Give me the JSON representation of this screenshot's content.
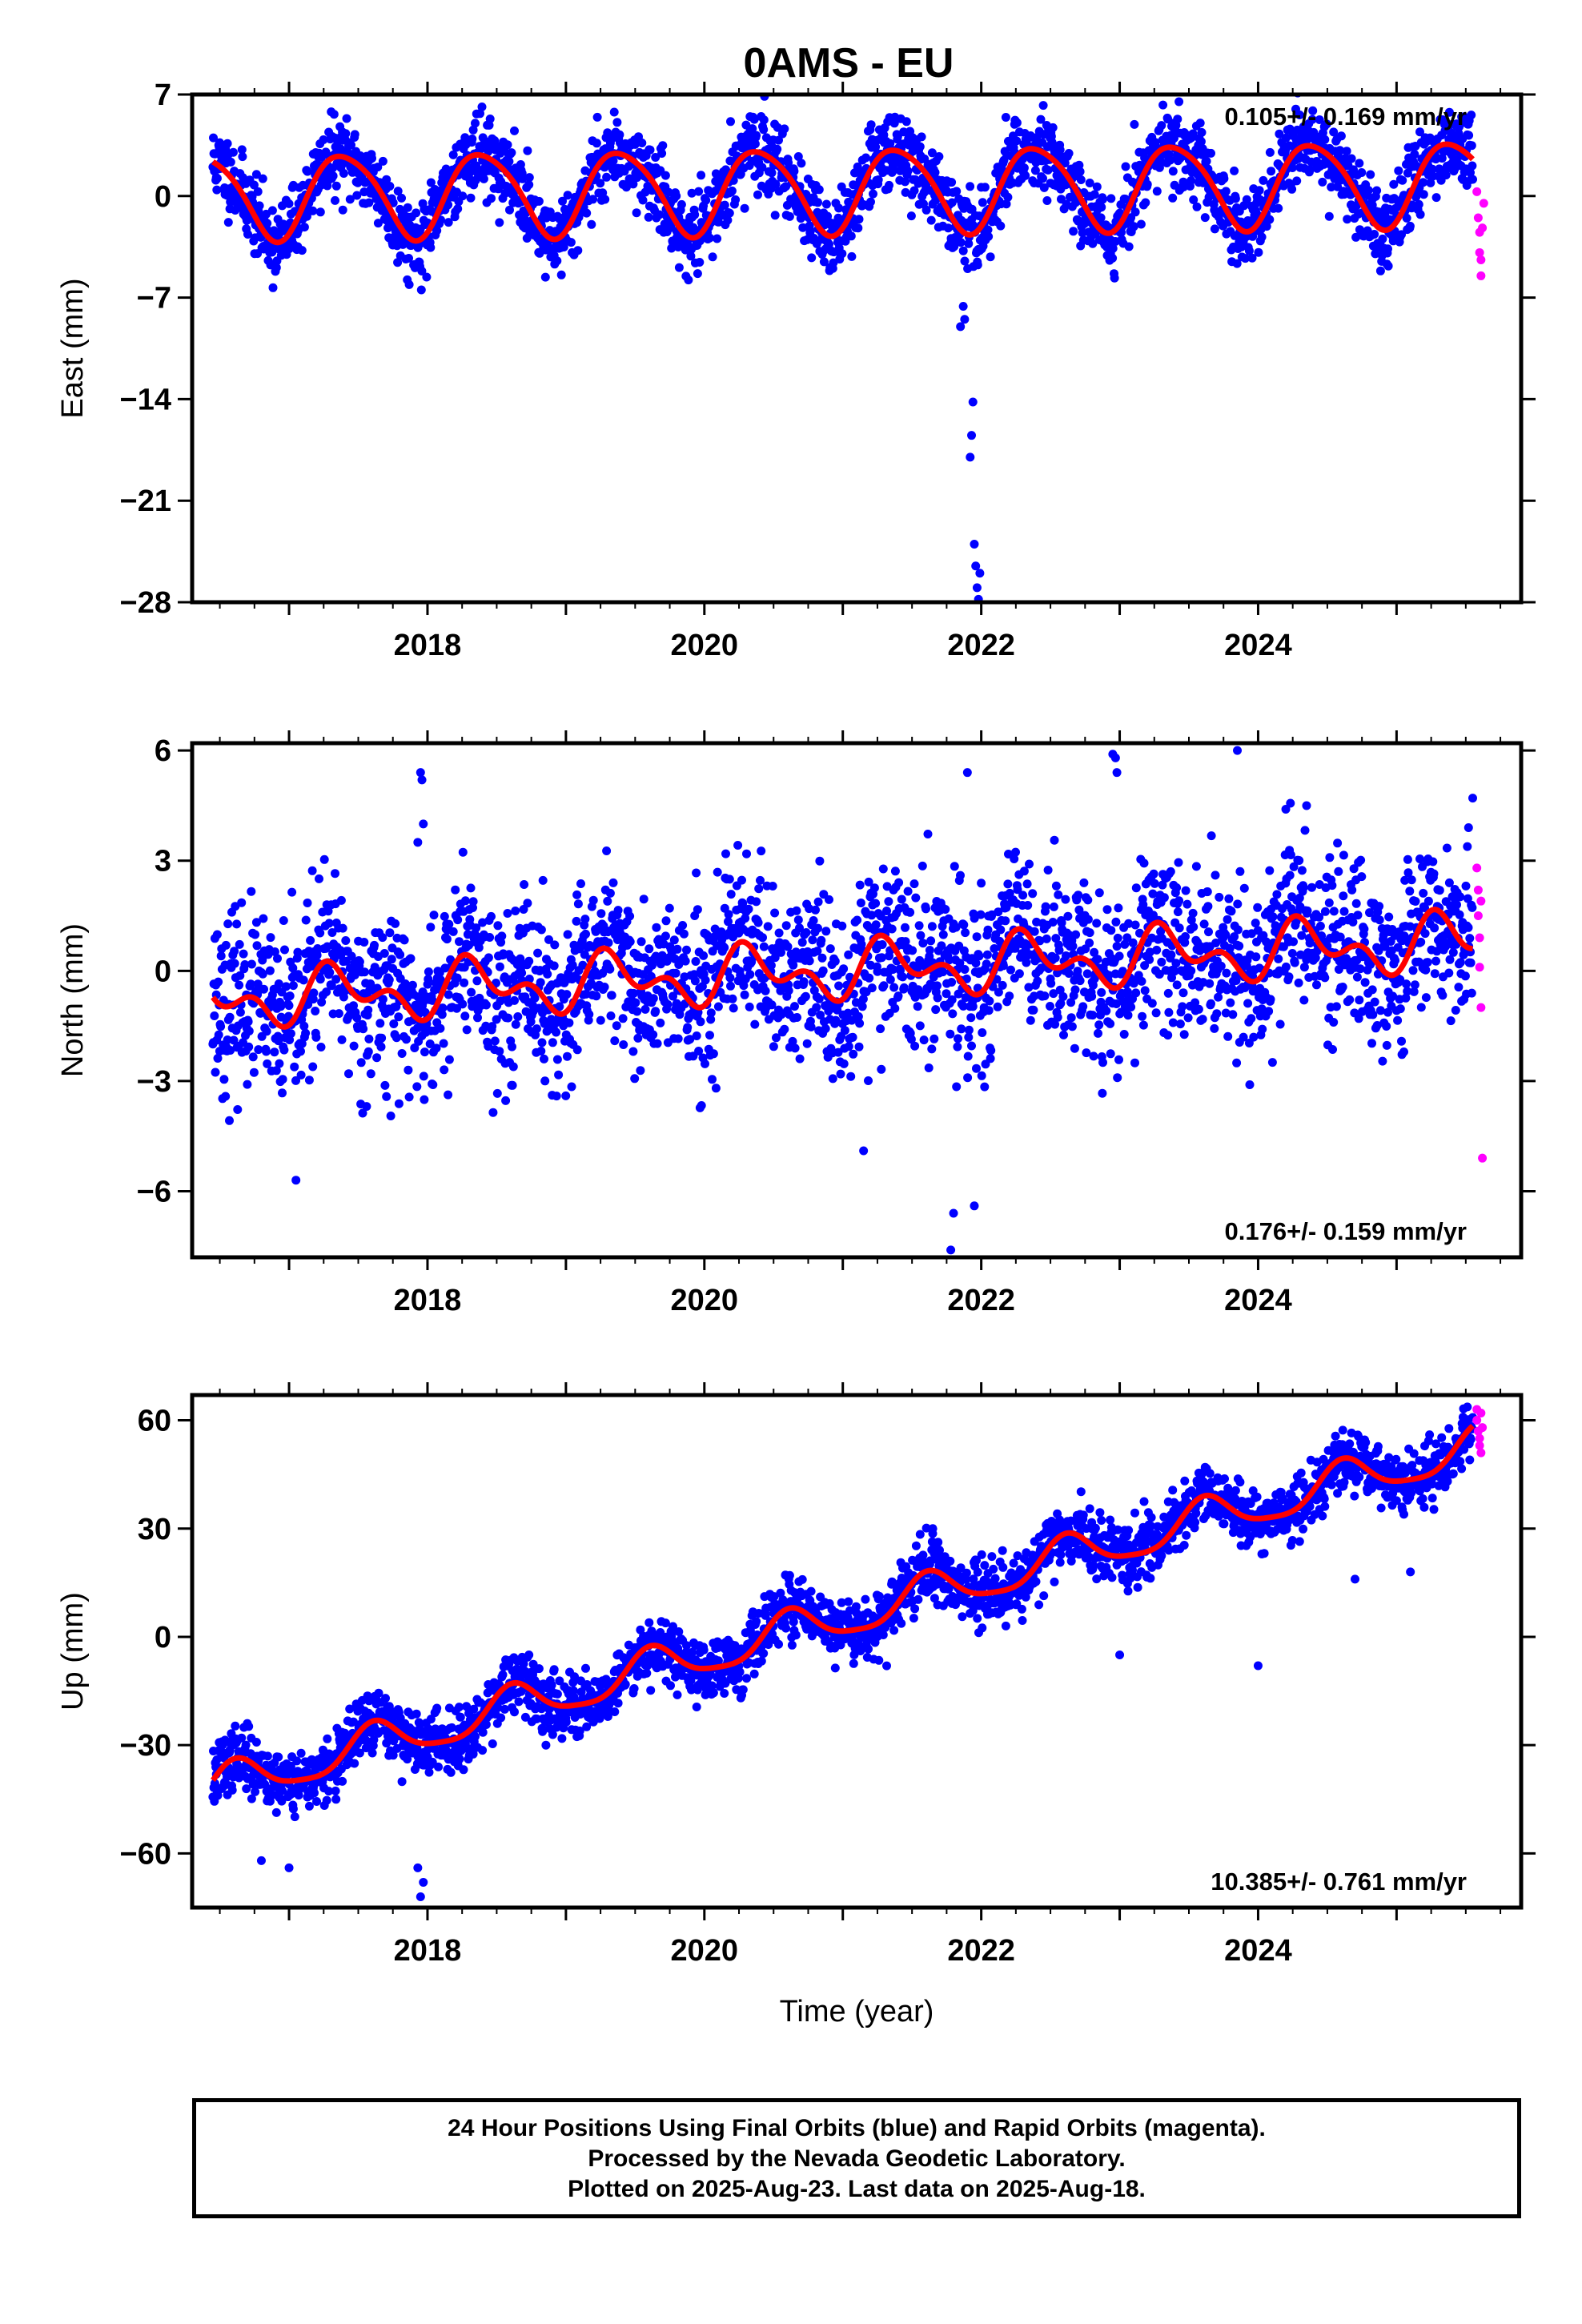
{
  "title": "0AMS - EU",
  "colors": {
    "final": "#0000ff",
    "rapid": "#ff00ff",
    "model": "#ff0000",
    "frame": "#000000"
  },
  "chart_data": [
    {
      "type": "scatter",
      "name": "east",
      "ylabel": "East (mm)",
      "xlim": [
        2016.3,
        2025.9
      ],
      "ylim": [
        -28,
        7
      ],
      "yticks": [
        7,
        0,
        -7,
        -14,
        -21,
        -28
      ],
      "xticks": [
        2018,
        2020,
        2022,
        2024
      ],
      "rate_label": "0.105+/- 0.169 mm/yr",
      "rate_position": "top-right",
      "model": {
        "offset": 0.0,
        "trend": 0.105,
        "annual_amp": 2.9,
        "annual_phase": 0.4,
        "semi_amp": 0.4,
        "semi_phase": 0.2,
        "tref": 2016.45,
        "t0": 2016.45,
        "t1": 2025.55
      },
      "final_points": {
        "t0": 2016.45,
        "t1": 2025.55,
        "count": 2600,
        "sigma": 1.3,
        "seed": 11
      },
      "outliers": [
        [
          2021.92,
          -18.0
        ],
        [
          2021.93,
          -16.5
        ],
        [
          2021.94,
          -14.2
        ],
        [
          2021.95,
          -24.0
        ],
        [
          2021.96,
          -25.5
        ],
        [
          2021.97,
          -27.0
        ],
        [
          2021.98,
          -27.8
        ],
        [
          2021.99,
          -26.0
        ],
        [
          2021.88,
          -8.5
        ],
        [
          2021.85,
          -9.0
        ],
        [
          2021.87,
          -7.6
        ]
      ],
      "rapid_points": [
        [
          2025.58,
          0.3
        ],
        [
          2025.59,
          -1.5
        ],
        [
          2025.6,
          -2.5
        ],
        [
          2025.6,
          -3.9
        ],
        [
          2025.61,
          -4.4
        ],
        [
          2025.61,
          -5.5
        ],
        [
          2025.62,
          -2.2
        ],
        [
          2025.63,
          -0.5
        ]
      ]
    },
    {
      "type": "scatter",
      "name": "north",
      "ylabel": "North (mm)",
      "xlim": [
        2016.3,
        2025.9
      ],
      "ylim": [
        -7.8,
        6.2
      ],
      "yticks": [
        6,
        3,
        0,
        -3,
        -6
      ],
      "xticks": [
        2018,
        2020,
        2022,
        2024
      ],
      "rate_label": "0.176+/- 0.159 mm/yr",
      "rate_position": "bottom-right",
      "model": {
        "offset": -0.8,
        "trend": 0.176,
        "annual_amp": 0.55,
        "annual_phase": 0.35,
        "semi_amp": 0.45,
        "semi_phase": 0.75,
        "tref": 2016.45,
        "t0": 2016.45,
        "t1": 2025.55
      },
      "final_points": {
        "t0": 2016.45,
        "t1": 2025.55,
        "count": 2600,
        "sigma": 1.15,
        "seed": 23
      },
      "outliers": [
        [
          2017.95,
          5.4
        ],
        [
          2017.96,
          5.2
        ],
        [
          2017.97,
          4.0
        ],
        [
          2017.93,
          3.5
        ],
        [
          2021.78,
          -7.6
        ],
        [
          2021.8,
          -6.6
        ],
        [
          2021.95,
          -6.4
        ],
        [
          2021.9,
          5.4
        ],
        [
          2022.95,
          5.9
        ],
        [
          2022.97,
          5.8
        ],
        [
          2022.98,
          5.4
        ],
        [
          2023.85,
          6.0
        ],
        [
          2017.05,
          -5.7
        ],
        [
          2021.15,
          -4.9
        ],
        [
          2024.35,
          4.5
        ],
        [
          2024.2,
          4.4
        ],
        [
          2025.52,
          3.9
        ]
      ],
      "rapid_points": [
        [
          2025.58,
          2.8
        ],
        [
          2025.59,
          2.2
        ],
        [
          2025.59,
          1.5
        ],
        [
          2025.6,
          0.9
        ],
        [
          2025.6,
          0.1
        ],
        [
          2025.61,
          -1.0
        ],
        [
          2025.62,
          -5.1
        ],
        [
          2025.61,
          1.9
        ]
      ]
    },
    {
      "type": "scatter",
      "name": "up",
      "ylabel": "Up (mm)",
      "xlabel": "Time (year)",
      "xlim": [
        2016.3,
        2025.9
      ],
      "ylim": [
        -75,
        67
      ],
      "yticks": [
        60,
        30,
        0,
        -30,
        -60
      ],
      "xticks": [
        2018,
        2020,
        2022,
        2024
      ],
      "rate_label": "10.385+/- 0.761 mm/yr",
      "rate_position": "bottom-right",
      "model": {
        "offset": -42.0,
        "trend": 10.385,
        "annual_amp": 5.5,
        "annual_phase": 0.62,
        "semi_amp": 1.2,
        "semi_phase": 0.1,
        "tref": 2016.45,
        "t0": 2016.45,
        "t1": 2025.55
      },
      "final_points": {
        "t0": 2016.45,
        "t1": 2025.55,
        "count": 2600,
        "sigma": 4.2,
        "seed": 37
      },
      "outliers": [
        [
          2017.95,
          -72.0
        ],
        [
          2017.97,
          -68.0
        ],
        [
          2017.93,
          -64.0
        ],
        [
          2016.8,
          -62.0
        ],
        [
          2017.0,
          -64.0
        ],
        [
          2024.0,
          -8.0
        ],
        [
          2024.7,
          16.0
        ],
        [
          2025.1,
          18.0
        ],
        [
          2023.0,
          -5.0
        ],
        [
          2021.65,
          30.0
        ]
      ],
      "rapid_points": [
        [
          2025.58,
          63.0
        ],
        [
          2025.58,
          60.0
        ],
        [
          2025.59,
          57.0
        ],
        [
          2025.6,
          55.0
        ],
        [
          2025.6,
          53.0
        ],
        [
          2025.61,
          51.0
        ],
        [
          2025.61,
          62.0
        ],
        [
          2025.62,
          58.0
        ]
      ]
    }
  ],
  "footer": {
    "line1": "24 Hour Positions Using Final Orbits (blue) and Rapid Orbits (magenta).",
    "line2": "Processed by the Nevada Geodetic Laboratory.",
    "line3": "Plotted on 2025-Aug-23. Last data on 2025-Aug-18."
  }
}
